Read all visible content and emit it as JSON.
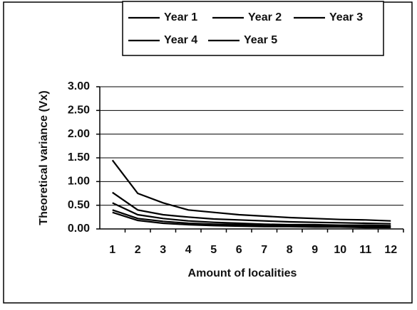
{
  "chart_data": {
    "type": "line",
    "x_label": "Amount of localities",
    "y_label": "Theoretical variance (Vx)",
    "categories": [
      "1",
      "2",
      "3",
      "4",
      "5",
      "6",
      "7",
      "8",
      "9",
      "10",
      "11",
      "12"
    ],
    "series": [
      {
        "name": "Year 1",
        "color": "#000000",
        "values": [
          1.45,
          0.75,
          0.55,
          0.4,
          0.35,
          0.3,
          0.27,
          0.24,
          0.22,
          0.2,
          0.19,
          0.17
        ]
      },
      {
        "name": "Year 2",
        "color": "#000000",
        "values": [
          0.77,
          0.4,
          0.3,
          0.25,
          0.21,
          0.19,
          0.17,
          0.15,
          0.14,
          0.13,
          0.12,
          0.11
        ]
      },
      {
        "name": "Year 3",
        "color": "#000000",
        "values": [
          0.55,
          0.3,
          0.22,
          0.17,
          0.14,
          0.12,
          0.1,
          0.09,
          0.09,
          0.08,
          0.08,
          0.07
        ]
      },
      {
        "name": "Year 4",
        "color": "#000000",
        "values": [
          0.4,
          0.22,
          0.16,
          0.12,
          0.1,
          0.09,
          0.08,
          0.07,
          0.06,
          0.06,
          0.05,
          0.05
        ]
      },
      {
        "name": "Year 5",
        "color": "#000000",
        "values": [
          0.35,
          0.18,
          0.12,
          0.09,
          0.07,
          0.06,
          0.05,
          0.05,
          0.04,
          0.04,
          0.03,
          0.03
        ]
      }
    ],
    "ylim": [
      0,
      3
    ],
    "yticks": [
      {
        "value": 0,
        "label": "0.00"
      },
      {
        "value": 0.5,
        "label": "0.50"
      },
      {
        "value": 1,
        "label": "1.00"
      },
      {
        "value": 1.5,
        "label": "1.50"
      },
      {
        "value": 2,
        "label": "2.00"
      },
      {
        "value": 2.5,
        "label": "2.50"
      },
      {
        "value": 3,
        "label": "3.00"
      }
    ],
    "grid": true,
    "legend": "top"
  }
}
